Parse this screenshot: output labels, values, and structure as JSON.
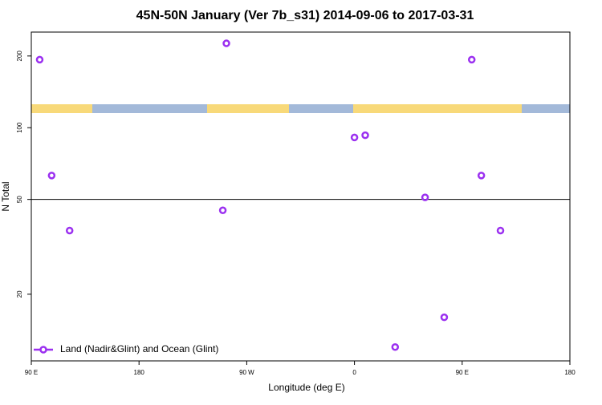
{
  "chart_data": {
    "type": "scatter",
    "title": "45N-50N January (Ver 7b_s31)   2014-09-06 to 2017-03-31",
    "xlabel": "Longitude (deg E)",
    "ylabel": "N Total",
    "series": [
      {
        "name": "Land (Nadir&Glint) and Ocean (Glint)",
        "color": "#9b30f0",
        "x": [
          -263,
          -253,
          -238,
          -107,
          -110,
          0,
          9,
          34,
          59,
          75,
          98,
          106,
          122
        ],
        "values": [
          193,
          63,
          37,
          226,
          45,
          91,
          93,
          12,
          51,
          16,
          193,
          63,
          37
        ]
      }
    ],
    "xlim": [
      -270,
      180
    ],
    "xticks": [
      {
        "value": -270,
        "label": "90 E"
      },
      {
        "value": -180,
        "label": "180"
      },
      {
        "value": -90,
        "label": "90 W"
      },
      0,
      {
        "value": 90,
        "label": "90 E"
      },
      180
    ],
    "ylim": [
      10.5,
      252
    ],
    "yticks": [
      20,
      50,
      100,
      200
    ],
    "log_y": true,
    "reference_line": 50,
    "legend": "bottom-left"
  }
}
